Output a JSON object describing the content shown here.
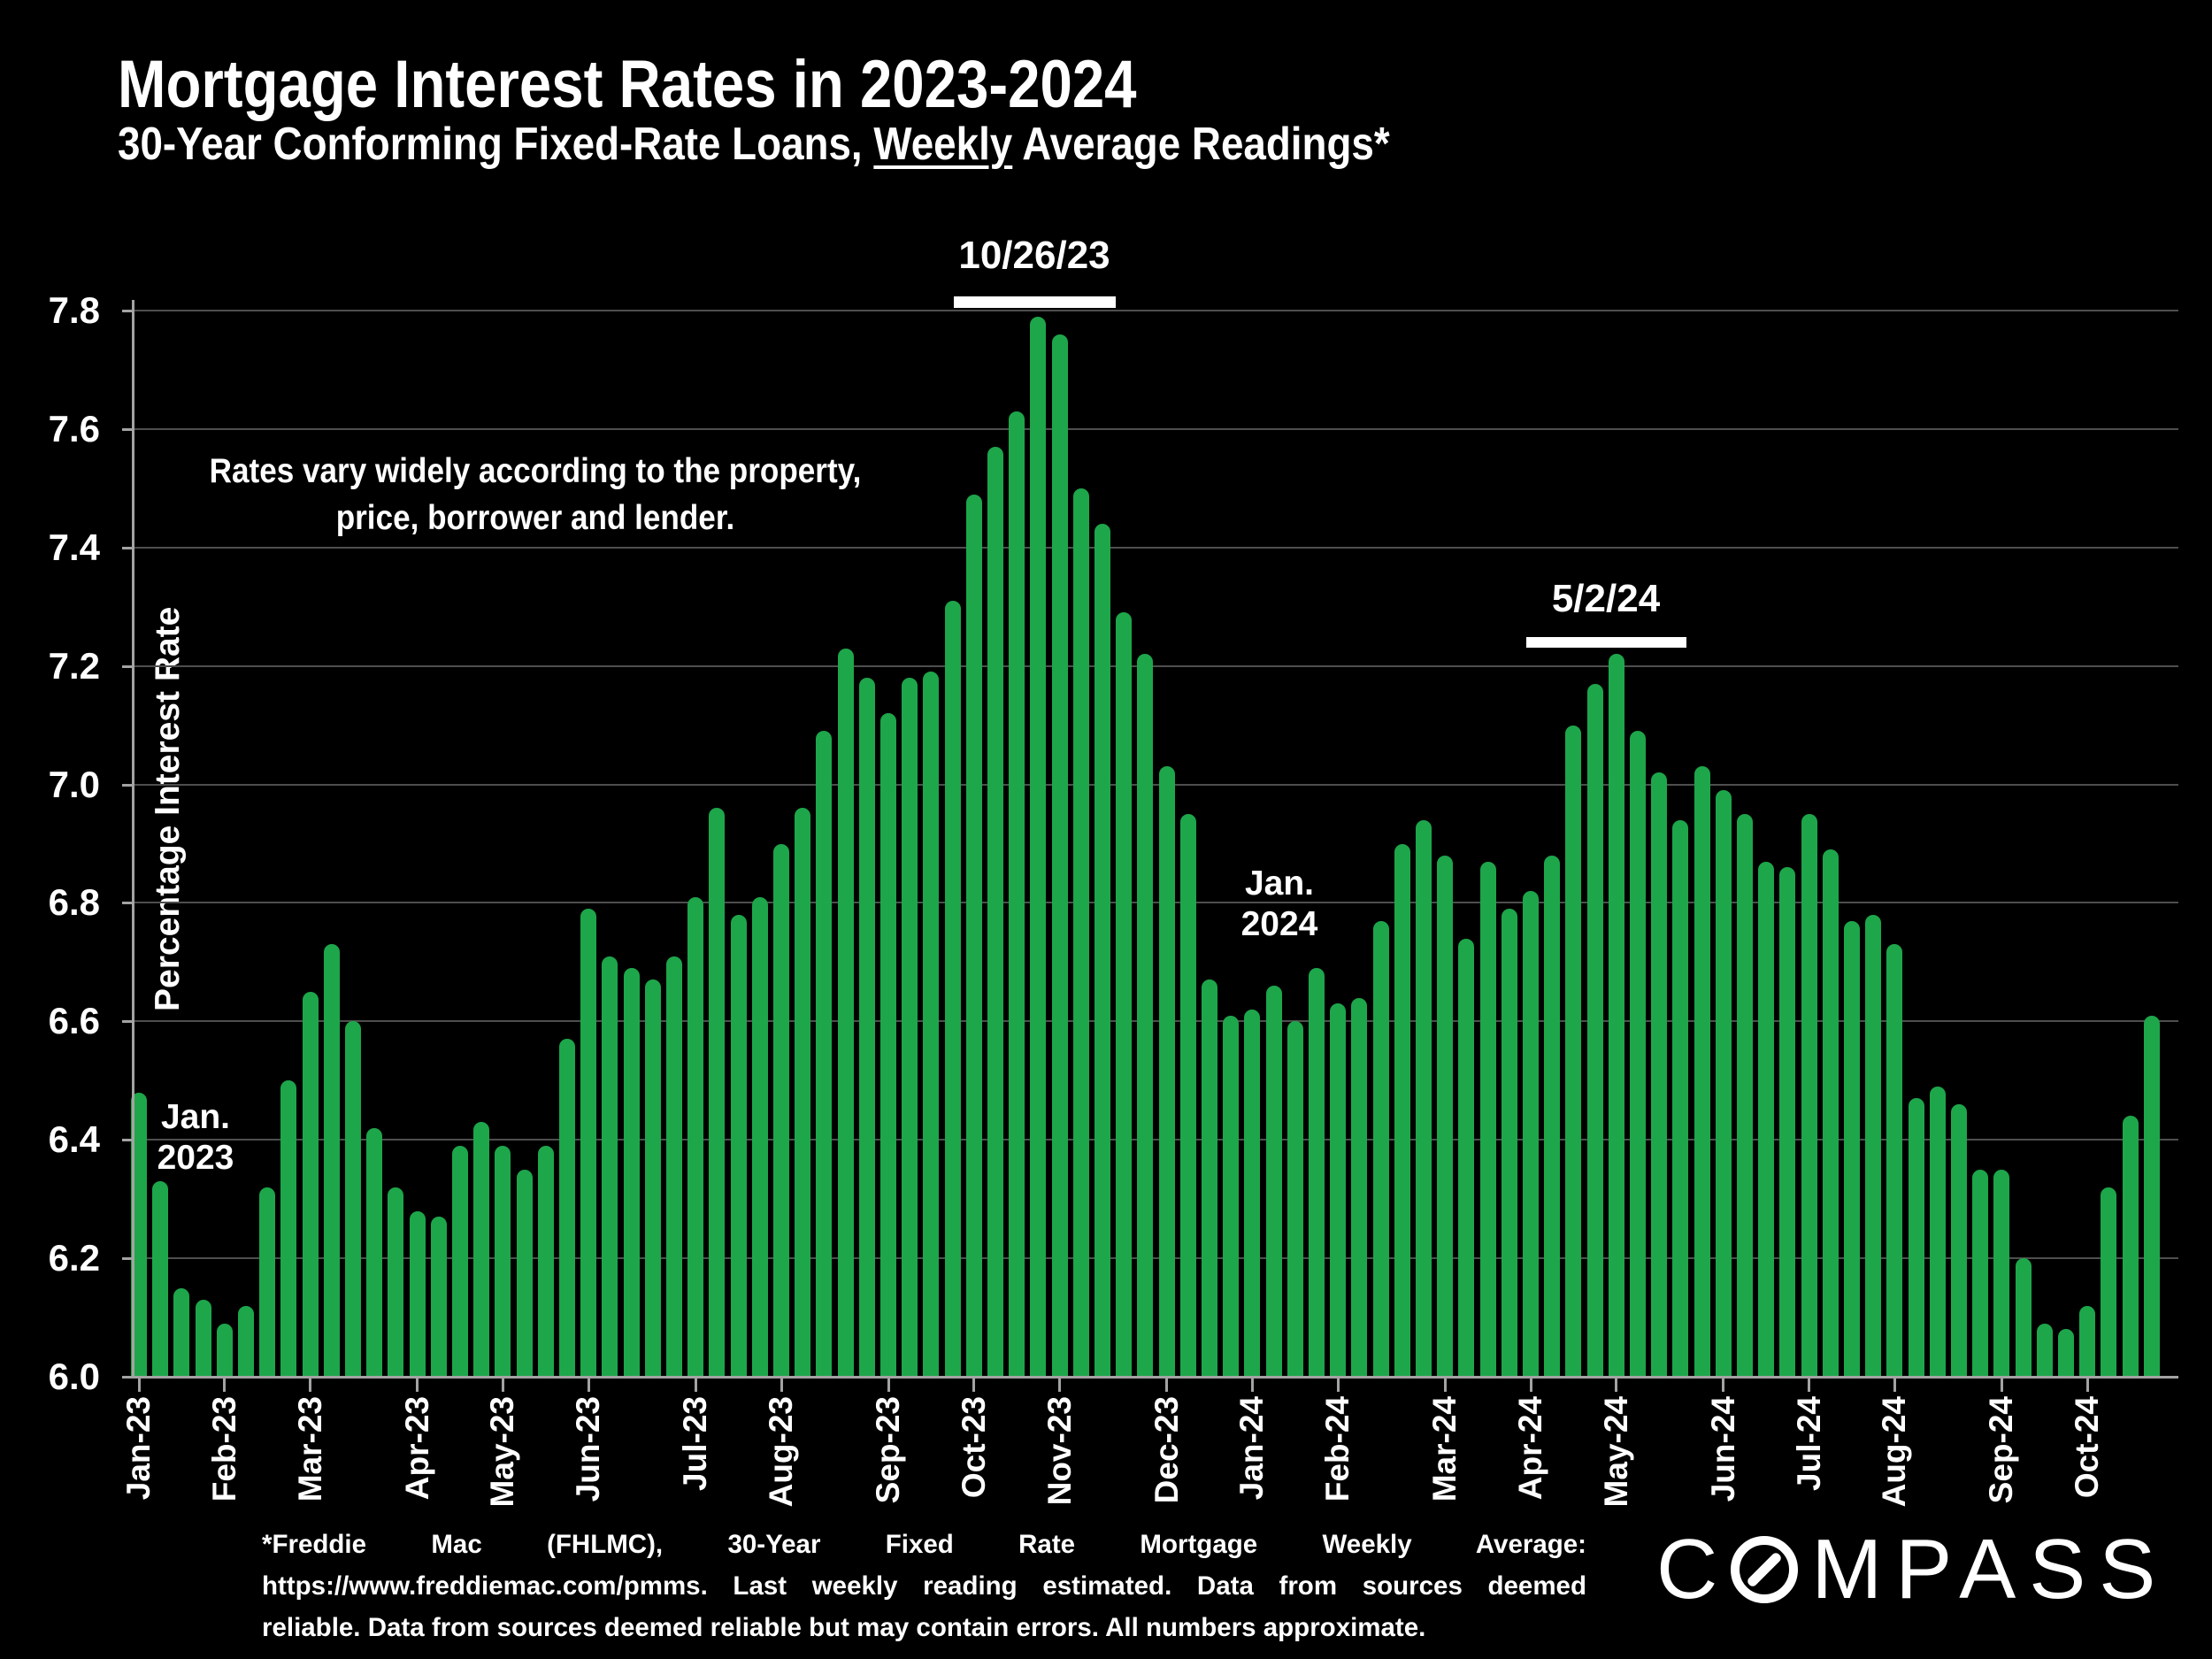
{
  "title": "Mortgage Interest Rates in 2023-2024",
  "subtitle": {
    "part1": "30-Year Conforming Fixed-Rate Loans, ",
    "underlined": "Weekly",
    "part2": " Average Readings*"
  },
  "y_axis": {
    "label": "Percentage Interest Rate",
    "ticks": [
      "7.8",
      "7.6",
      "7.4",
      "7.2",
      "7.0",
      "6.8",
      "6.6",
      "6.4",
      "6.2",
      "6.0"
    ],
    "min": 6.0,
    "max": 7.8
  },
  "x_axis": {
    "month_ticks": [
      {
        "label": "Jan-23",
        "bar_index": 0
      },
      {
        "label": "Feb-23",
        "bar_index": 4
      },
      {
        "label": "Mar-23",
        "bar_index": 8
      },
      {
        "label": "Apr-23",
        "bar_index": 13
      },
      {
        "label": "May-23",
        "bar_index": 17
      },
      {
        "label": "Jun-23",
        "bar_index": 21
      },
      {
        "label": "Jul-23",
        "bar_index": 26
      },
      {
        "label": "Aug-23",
        "bar_index": 30
      },
      {
        "label": "Sep-23",
        "bar_index": 35
      },
      {
        "label": "Oct-23",
        "bar_index": 39
      },
      {
        "label": "Nov-23",
        "bar_index": 43
      },
      {
        "label": "Dec-23",
        "bar_index": 48
      },
      {
        "label": "Jan-24",
        "bar_index": 52
      },
      {
        "label": "Feb-24",
        "bar_index": 56
      },
      {
        "label": "Mar-24",
        "bar_index": 61
      },
      {
        "label": "Apr-24",
        "bar_index": 65
      },
      {
        "label": "May-24",
        "bar_index": 69
      },
      {
        "label": "Jun-24",
        "bar_index": 74
      },
      {
        "label": "Jul-24",
        "bar_index": 78
      },
      {
        "label": "Aug-24",
        "bar_index": 82
      },
      {
        "label": "Sep-24",
        "bar_index": 87
      },
      {
        "label": "Oct-24",
        "bar_index": 91
      }
    ]
  },
  "annotations": {
    "vary_line1": "Rates vary widely according to the property,",
    "vary_line2": "price, borrower and lender.",
    "jan2023_line1": "Jan.",
    "jan2023_line2": "2023",
    "jan2024_line1": "Jan.",
    "jan2024_line2": "2024"
  },
  "callouts": [
    {
      "label": "10/26/23",
      "peak_value": 7.79,
      "bar_index": 42
    },
    {
      "label": "5/2/24",
      "peak_value": 7.22,
      "bar_index": 69
    }
  ],
  "chart_data": {
    "type": "bar",
    "title": "Mortgage Interest Rates in 2023-2024",
    "subtitle": "30-Year Conforming Fixed-Rate Loans, Weekly Average Readings*",
    "xlabel": "",
    "ylabel": "Percentage Interest Rate",
    "ylim": [
      6.0,
      7.8
    ],
    "y_tick_step": 0.2,
    "grid": "horizontal",
    "legend": "none",
    "unit": "percent",
    "x_description": "weekly readings Jan-23 through Oct-24; month tick labels mark first week of each month",
    "categories_month_ticks": [
      "Jan-23",
      "Feb-23",
      "Mar-23",
      "Apr-23",
      "May-23",
      "Jun-23",
      "Jul-23",
      "Aug-23",
      "Sep-23",
      "Oct-23",
      "Nov-23",
      "Dec-23",
      "Jan-24",
      "Feb-24",
      "Mar-24",
      "Apr-24",
      "May-24",
      "Jun-24",
      "Jul-24",
      "Aug-24",
      "Sep-24",
      "Oct-24"
    ],
    "values": [
      6.48,
      6.33,
      6.15,
      6.13,
      6.09,
      6.12,
      6.32,
      6.5,
      6.65,
      6.73,
      6.6,
      6.42,
      6.32,
      6.28,
      6.27,
      6.39,
      6.43,
      6.39,
      6.35,
      6.39,
      6.57,
      6.79,
      6.71,
      6.69,
      6.67,
      6.71,
      6.81,
      6.96,
      6.78,
      6.81,
      6.9,
      6.96,
      7.09,
      7.23,
      7.18,
      7.12,
      7.18,
      7.19,
      7.31,
      7.49,
      7.57,
      7.63,
      7.79,
      7.76,
      7.5,
      7.44,
      7.29,
      7.22,
      7.03,
      6.95,
      6.67,
      6.61,
      6.62,
      6.66,
      6.6,
      6.69,
      6.63,
      6.64,
      6.77,
      6.9,
      6.94,
      6.88,
      6.74,
      6.87,
      6.79,
      6.82,
      6.88,
      7.1,
      7.17,
      7.22,
      7.09,
      7.02,
      6.94,
      7.03,
      6.99,
      6.95,
      6.87,
      6.86,
      6.95,
      6.89,
      6.77,
      6.78,
      6.73,
      6.47,
      6.49,
      6.46,
      6.35,
      6.35,
      6.2,
      6.09,
      6.08,
      6.12,
      6.32,
      6.44,
      6.61
    ]
  },
  "footnote": {
    "lines": [
      "*Freddie Mac (FHLMC), 30-Year Fixed Rate Mortgage Weekly Average:",
      "https://www.freddiemac.com/pmms. Last weekly reading estimated. Data from sources deemed",
      "reliable. Data from sources deemed reliable but may contain errors. All numbers approximate."
    ]
  },
  "logo": {
    "letter_c": "C",
    "letters_rest": "MPASS"
  },
  "colors": {
    "background": "#000000",
    "bar_green": "#1EA64B",
    "gridline": "#4E4E4E",
    "axis": "#A3A3A3",
    "text": "#FFFFFF"
  }
}
